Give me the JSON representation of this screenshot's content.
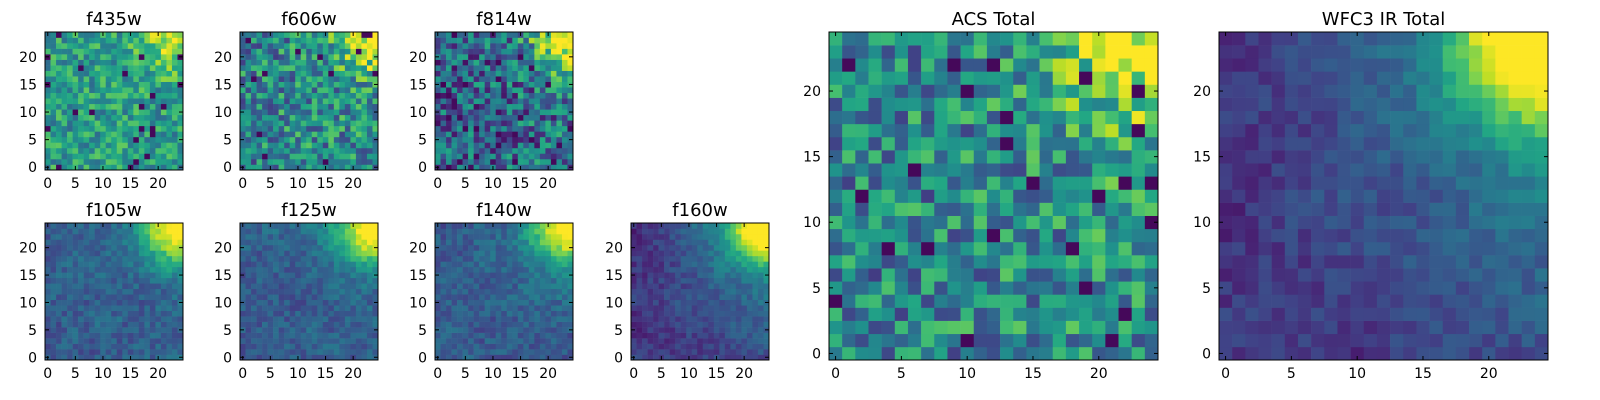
{
  "chart_data": [
    {
      "type": "heatmap",
      "title": "f435w",
      "grid_size": 25,
      "xticks": [
        "0",
        "5",
        "10",
        "15",
        "20"
      ],
      "yticks": [
        "0",
        "5",
        "10",
        "15",
        "20"
      ],
      "pattern": "noisy-bright"
    },
    {
      "type": "heatmap",
      "title": "f606w",
      "grid_size": 25,
      "xticks": [
        "0",
        "5",
        "10",
        "15",
        "20"
      ],
      "yticks": [
        "0",
        "5",
        "10",
        "15",
        "20"
      ],
      "pattern": "noisy-gradient"
    },
    {
      "type": "heatmap",
      "title": "f814w",
      "grid_size": 25,
      "xticks": [
        "0",
        "5",
        "10",
        "15",
        "20"
      ],
      "yticks": [
        "0",
        "5",
        "10",
        "15",
        "20"
      ],
      "pattern": "noisy-gradient-dark"
    },
    {
      "type": "heatmap",
      "title": "f105w",
      "grid_size": 25,
      "xticks": [
        "0",
        "5",
        "10",
        "15",
        "20"
      ],
      "yticks": [
        "0",
        "5",
        "10",
        "15",
        "20"
      ],
      "pattern": "smooth-gradient"
    },
    {
      "type": "heatmap",
      "title": "f125w",
      "grid_size": 25,
      "xticks": [
        "0",
        "5",
        "10",
        "15",
        "20"
      ],
      "yticks": [
        "0",
        "5",
        "10",
        "15",
        "20"
      ],
      "pattern": "smooth-gradient"
    },
    {
      "type": "heatmap",
      "title": "f140w",
      "grid_size": 25,
      "xticks": [
        "0",
        "5",
        "10",
        "15",
        "20"
      ],
      "yticks": [
        "0",
        "5",
        "10",
        "15",
        "20"
      ],
      "pattern": "smooth-gradient"
    },
    {
      "type": "heatmap",
      "title": "f160w",
      "grid_size": 25,
      "xticks": [
        "0",
        "5",
        "10",
        "15",
        "20"
      ],
      "yticks": [
        "0",
        "5",
        "10",
        "15",
        "20"
      ],
      "pattern": "smooth-gradient-dark"
    },
    {
      "type": "heatmap",
      "title": "ACS Total",
      "grid_size": 25,
      "xticks": [
        "0",
        "5",
        "10",
        "15",
        "20"
      ],
      "yticks": [
        "0",
        "5",
        "10",
        "15",
        "20"
      ],
      "pattern": "noisy-gradient"
    },
    {
      "type": "heatmap",
      "title": "WFC3 IR Total",
      "grid_size": 25,
      "xticks": [
        "0",
        "5",
        "10",
        "15",
        "20"
      ],
      "yticks": [
        "0",
        "5",
        "10",
        "15",
        "20"
      ],
      "pattern": "smooth-gradient-dark"
    }
  ],
  "colormap": "viridis",
  "colors": {
    "viridis_low": "#440154",
    "viridis_mid": "#21918c",
    "viridis_high": "#fde725"
  }
}
